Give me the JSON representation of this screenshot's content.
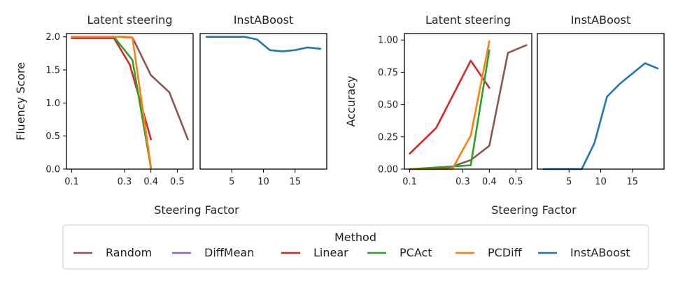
{
  "colors": {
    "Random": "#8c564b",
    "DiffMean": "#9467bd",
    "Linear": "#d62728",
    "PCAct": "#2ca02c",
    "PCDiff": "#ff7f0e",
    "InstABoost": "#1f77b4"
  },
  "legend": {
    "title": "Method",
    "entries": [
      "Random",
      "DiffMean",
      "Linear",
      "PCAct",
      "PCDiff",
      "InstABoost"
    ]
  },
  "xlabel": "Steering Factor",
  "chart_data": [
    {
      "type": "line",
      "title": "Latent steering",
      "ylabel": "Fluency Score",
      "xlim": [
        0.08,
        0.56
      ],
      "ylim": [
        0,
        2.05
      ],
      "xticks": [
        0.1,
        0.3,
        0.4,
        0.5
      ],
      "yticks": [
        0.0,
        0.5,
        1.0,
        1.5,
        2.0
      ],
      "series": [
        {
          "name": "Random",
          "x": [
            0.1,
            0.2,
            0.3,
            0.33,
            0.4,
            0.47,
            0.54
          ],
          "y": [
            2.0,
            2.0,
            2.0,
            1.99,
            1.42,
            1.16,
            0.45
          ]
        },
        {
          "name": "Linear",
          "x": [
            0.1,
            0.2,
            0.26,
            0.32,
            0.35,
            0.4
          ],
          "y": [
            1.98,
            1.98,
            1.98,
            1.58,
            1.16,
            0.45
          ]
        },
        {
          "name": "PCAct",
          "x": [
            0.1,
            0.26,
            0.33,
            0.4
          ],
          "y": [
            2.0,
            2.0,
            1.65,
            0.02
          ]
        },
        {
          "name": "PCDiff",
          "x": [
            0.1,
            0.26,
            0.33,
            0.4
          ],
          "y": [
            2.0,
            2.0,
            1.99,
            0.03
          ]
        }
      ]
    },
    {
      "type": "line",
      "title": "InstABoost",
      "ylabel": "",
      "xlim": [
        0,
        20
      ],
      "ylim": [
        0,
        2.05
      ],
      "xticks": [
        5,
        10,
        15
      ],
      "yticks": [],
      "series": [
        {
          "name": "InstABoost",
          "x": [
            1,
            3,
            5,
            7,
            9,
            11,
            13,
            15,
            17,
            19
          ],
          "y": [
            2.0,
            2.0,
            2.0,
            2.0,
            1.96,
            1.8,
            1.78,
            1.8,
            1.84,
            1.82
          ]
        }
      ]
    },
    {
      "type": "line",
      "title": "Latent steering",
      "ylabel": "Accuracy",
      "xlim": [
        0.08,
        0.56
      ],
      "ylim": [
        0,
        1.05
      ],
      "xticks": [
        0.1,
        0.3,
        0.4,
        0.5
      ],
      "yticks": [
        0.0,
        0.25,
        0.5,
        0.75,
        1.0
      ],
      "series": [
        {
          "name": "Random",
          "x": [
            0.1,
            0.2,
            0.26,
            0.33,
            0.4,
            0.47,
            0.54
          ],
          "y": [
            0.0,
            0.0,
            0.02,
            0.07,
            0.18,
            0.9,
            0.96
          ]
        },
        {
          "name": "Linear",
          "x": [
            0.1,
            0.2,
            0.33,
            0.4
          ],
          "y": [
            0.12,
            0.32,
            0.84,
            0.63
          ]
        },
        {
          "name": "PCAct",
          "x": [
            0.1,
            0.26,
            0.33,
            0.4
          ],
          "y": [
            0.0,
            0.02,
            0.03,
            0.92
          ]
        },
        {
          "name": "PCDiff",
          "x": [
            0.1,
            0.26,
            0.33,
            0.4
          ],
          "y": [
            0.0,
            0.0,
            0.26,
            0.99
          ]
        }
      ]
    },
    {
      "type": "line",
      "title": "InstABoost",
      "ylabel": "",
      "xlim": [
        0,
        20
      ],
      "ylim": [
        0,
        1.05
      ],
      "xticks": [
        5,
        10,
        15
      ],
      "yticks": [],
      "series": [
        {
          "name": "InstABoost",
          "x": [
            1,
            3,
            5,
            7,
            9,
            11,
            13,
            15,
            17,
            19
          ],
          "y": [
            0.0,
            0.0,
            0.0,
            0.0,
            0.2,
            0.56,
            0.66,
            0.74,
            0.82,
            0.78
          ]
        }
      ]
    }
  ]
}
